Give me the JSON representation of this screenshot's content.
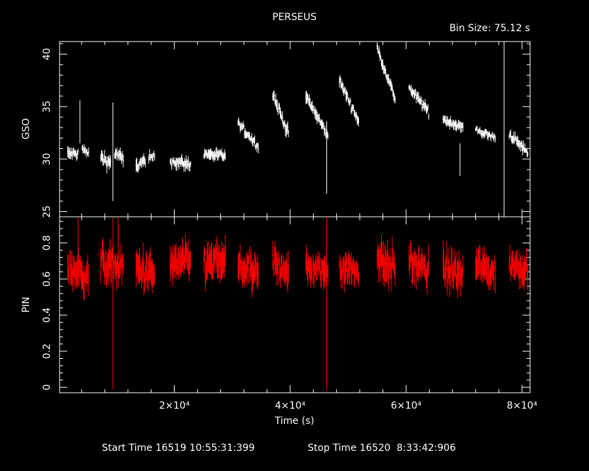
{
  "title": "PERSEUS",
  "bin_size": "Bin Size: 75.12 s",
  "footer": {
    "start": "Start Time 16519 10:55:31:399",
    "stop": "Stop Time 16520  8:33:42:906"
  },
  "colors": {
    "background": "#000000",
    "axes": "#ffffff",
    "gso": "#ffffff",
    "pin": "#ff0000"
  },
  "chart_data": [
    {
      "type": "scatter",
      "panel": "top",
      "xlabel": "",
      "ylabel": "GSO",
      "xlim": [
        200,
        81400
      ],
      "ylim": [
        24.5,
        41.2
      ],
      "yticks": [
        25,
        30,
        35,
        40
      ],
      "ytick_labels": [
        "25",
        "30",
        "35",
        "40"
      ],
      "grid": false,
      "errorbars": true,
      "segments": [
        {
          "t0": 1600,
          "t1": 3400,
          "v0": 30.5,
          "v1": 30.5,
          "spread": 0.7
        },
        {
          "t0": 4100,
          "t1": 5200,
          "v0": 31.0,
          "v1": 30.5,
          "spread": 0.5
        },
        {
          "t0": 7300,
          "t1": 9000,
          "v0": 30.2,
          "v1": 29.6,
          "spread": 0.8
        },
        {
          "t0": 9700,
          "t1": 11200,
          "v0": 30.6,
          "v1": 30.0,
          "spread": 0.7
        },
        {
          "t0": 13400,
          "t1": 15000,
          "v0": 29.3,
          "v1": 29.8,
          "spread": 0.8
        },
        {
          "t0": 15600,
          "t1": 16600,
          "v0": 30.0,
          "v1": 30.3,
          "spread": 0.6
        },
        {
          "t0": 19300,
          "t1": 22800,
          "v0": 29.8,
          "v1": 29.5,
          "spread": 0.7
        },
        {
          "t0": 25100,
          "t1": 28800,
          "v0": 30.5,
          "v1": 30.3,
          "spread": 0.6
        },
        {
          "t0": 31000,
          "t1": 34500,
          "v0": 33.4,
          "v1": 31.2,
          "spread": 0.6
        },
        {
          "t0": 37000,
          "t1": 39700,
          "v0": 36.2,
          "v1": 32.4,
          "spread": 0.7
        },
        {
          "t0": 42700,
          "t1": 46500,
          "v0": 36.0,
          "v1": 32.2,
          "spread": 0.7
        },
        {
          "t0": 48500,
          "t1": 51800,
          "v0": 37.5,
          "v1": 33.6,
          "spread": 0.6
        },
        {
          "t0": 55000,
          "t1": 58100,
          "v0": 40.6,
          "v1": 35.8,
          "spread": 0.6
        },
        {
          "t0": 60500,
          "t1": 63900,
          "v0": 36.8,
          "v1": 34.5,
          "spread": 0.6
        },
        {
          "t0": 66400,
          "t1": 69800,
          "v0": 33.8,
          "v1": 33.0,
          "spread": 0.6
        },
        {
          "t0": 72000,
          "t1": 75400,
          "v0": 32.8,
          "v1": 32.0,
          "spread": 0.5
        },
        {
          "t0": 77800,
          "t1": 81000,
          "v0": 32.4,
          "v1": 30.6,
          "spread": 0.6
        }
      ],
      "outliers": [
        {
          "t": 3700,
          "lo": 31.5,
          "hi": 35.6
        },
        {
          "t": 9400,
          "lo": 26.0,
          "hi": 35.4
        },
        {
          "t": 46300,
          "lo": 26.7,
          "hi": 33.6
        },
        {
          "t": 69300,
          "lo": 28.4,
          "hi": 31.5
        },
        {
          "t": 76900,
          "lo": 24.5,
          "hi": 41.2
        }
      ]
    },
    {
      "type": "scatter",
      "panel": "bottom",
      "xlabel": "Time (s)",
      "ylabel": "PIN",
      "xlim": [
        200,
        81400
      ],
      "ylim": [
        -0.03,
        0.945
      ],
      "yticks": [
        0,
        0.2,
        0.4,
        0.6,
        0.8
      ],
      "ytick_labels": [
        "0",
        "0.2",
        "0.4",
        "0.6",
        "0.8"
      ],
      "xticks": [
        20000,
        40000,
        60000,
        80000
      ],
      "xtick_labels": [
        "2×10⁴",
        "4×10⁴",
        "6×10⁴",
        "8×10⁴"
      ],
      "grid": false,
      "errorbars": true,
      "segments": [
        {
          "t0": 1600,
          "t1": 5200,
          "v0": 0.66,
          "v1": 0.62,
          "spread": 0.11
        },
        {
          "t0": 7300,
          "t1": 11200,
          "v0": 0.69,
          "v1": 0.66,
          "spread": 0.11
        },
        {
          "t0": 13400,
          "t1": 16600,
          "v0": 0.66,
          "v1": 0.62,
          "spread": 0.12
        },
        {
          "t0": 19300,
          "t1": 22800,
          "v0": 0.68,
          "v1": 0.7,
          "spread": 0.11
        },
        {
          "t0": 25100,
          "t1": 28800,
          "v0": 0.68,
          "v1": 0.7,
          "spread": 0.12
        },
        {
          "t0": 31000,
          "t1": 34500,
          "v0": 0.67,
          "v1": 0.62,
          "spread": 0.11
        },
        {
          "t0": 37000,
          "t1": 39700,
          "v0": 0.69,
          "v1": 0.65,
          "spread": 0.11
        },
        {
          "t0": 42700,
          "t1": 46500,
          "v0": 0.66,
          "v1": 0.64,
          "spread": 0.1
        },
        {
          "t0": 48500,
          "t1": 51800,
          "v0": 0.67,
          "v1": 0.64,
          "spread": 0.1
        },
        {
          "t0": 55000,
          "t1": 58100,
          "v0": 0.72,
          "v1": 0.66,
          "spread": 0.12
        },
        {
          "t0": 60500,
          "t1": 63900,
          "v0": 0.7,
          "v1": 0.64,
          "spread": 0.11
        },
        {
          "t0": 66400,
          "t1": 69800,
          "v0": 0.66,
          "v1": 0.62,
          "spread": 0.12
        },
        {
          "t0": 72000,
          "t1": 75400,
          "v0": 0.68,
          "v1": 0.63,
          "spread": 0.11
        },
        {
          "t0": 77800,
          "t1": 81000,
          "v0": 0.68,
          "v1": 0.66,
          "spread": 0.1
        }
      ],
      "outliers": [
        {
          "t": 9400,
          "lo": -0.01,
          "hi": 0.94
        },
        {
          "t": 46300,
          "lo": -0.01,
          "hi": 0.94
        },
        {
          "t": 3400,
          "lo": 0.55,
          "hi": 0.94
        },
        {
          "t": 10300,
          "lo": 0.6,
          "hi": 0.94
        }
      ]
    }
  ]
}
